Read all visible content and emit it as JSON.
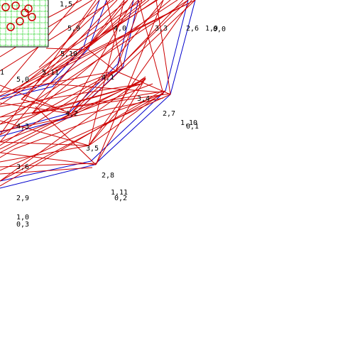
{
  "diagram": {
    "colors": {
      "background": "#ffffff",
      "outer_outline": "#0000cc",
      "edges": "#cc0000",
      "inset_grid": "#00cc00",
      "inset_markers": "#cc0000",
      "inset_border": "#000000",
      "labels": "#000000"
    },
    "labels": [
      {
        "id": "l-1-5",
        "text": "1,5"
      },
      {
        "id": "l-5-9",
        "text": "5,9"
      },
      {
        "id": "l-4-0",
        "text": "4,0"
      },
      {
        "id": "l-3-3",
        "text": "3,3"
      },
      {
        "id": "l-2-6",
        "text": "2,6"
      },
      {
        "id": "l-1-9",
        "text": "1,9"
      },
      {
        "id": "l-0-0",
        "text": "0,0"
      },
      {
        "id": "l-5-10",
        "text": "5,10"
      },
      {
        "id": "l-1",
        "text": "1"
      },
      {
        "id": "l-5-0",
        "text": "5,0"
      },
      {
        "id": "l-5-11",
        "text": "5,11"
      },
      {
        "id": "l-4-1",
        "text": "4,1"
      },
      {
        "id": "l-3-4",
        "text": "3,4"
      },
      {
        "id": "l-2-7",
        "text": "2,7"
      },
      {
        "id": "l-4-2",
        "text": "4,2"
      },
      {
        "id": "l-1-10",
        "text": "1,10"
      },
      {
        "id": "l-0-1",
        "text": "0,1"
      },
      {
        "id": "l-4-3",
        "text": "4,3"
      },
      {
        "id": "l-3-5",
        "text": "3,5"
      },
      {
        "id": "l-3-6",
        "text": "3,6"
      },
      {
        "id": "l-2-8",
        "text": "2,8"
      },
      {
        "id": "l-1-11",
        "text": "1,11"
      },
      {
        "id": "l-0-2",
        "text": "0,2"
      },
      {
        "id": "l-2-9",
        "text": "2,9"
      },
      {
        "id": "l-1-0",
        "text": "1,0"
      },
      {
        "id": "l-0-3",
        "text": "0,3"
      }
    ]
  }
}
